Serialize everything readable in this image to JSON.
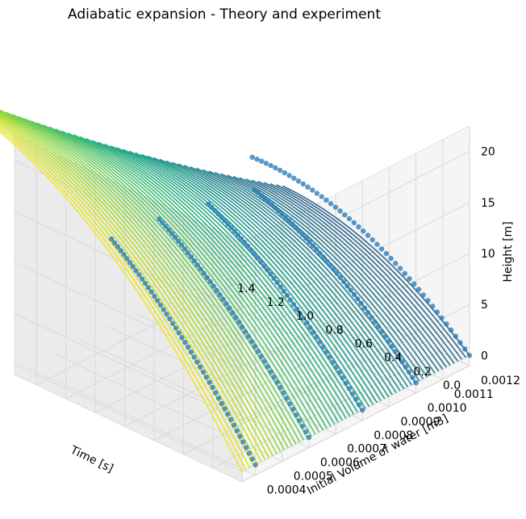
{
  "chart_data": {
    "type": "surface3d",
    "title": "Adiabatic expansion - Theory and experiment",
    "xlabel": "Time [s]",
    "ylabel": "Initial Volume of water [m3]",
    "zlabel": "Height [m]",
    "xticks": [
      "0.0",
      "0.2",
      "0.4",
      "0.6",
      "0.8",
      "1.0",
      "1.2",
      "1.4"
    ],
    "yticks": [
      "0.0004",
      "0.0005",
      "0.0006",
      "0.0007",
      "0.0008",
      "0.0009",
      "0.0010",
      "0.0011",
      "0.0012"
    ],
    "zticks": [
      "0",
      "5",
      "10",
      "15",
      "20"
    ],
    "xlim": [
      0,
      1.55
    ],
    "ylim": [
      0.00035,
      0.0012
    ],
    "zlim": [
      -1,
      22.5
    ],
    "grid": true,
    "colormap": "viridis",
    "point_color": "#1f77b4",
    "surface": {
      "kind": "ballistic_height",
      "volume_min": 0.00035,
      "volume_max": 0.0012,
      "curves": 60,
      "v0_at_volume_min": 21.5,
      "v0_at_volume_max": 12.5,
      "gravity": 9.81
    },
    "experiment_series": [
      {
        "volume": 0.0004,
        "v0": 20.6,
        "t_max": 0.98
      },
      {
        "volume": 0.0006,
        "v0": 19.2,
        "t_max": 1.02
      },
      {
        "volume": 0.0008,
        "v0": 17.6,
        "t_max": 1.05
      },
      {
        "volume": 0.001,
        "v0": 15.8,
        "t_max": 1.1
      },
      {
        "volume": 0.0012,
        "v0": 13.6,
        "t_max": 1.48
      }
    ]
  }
}
